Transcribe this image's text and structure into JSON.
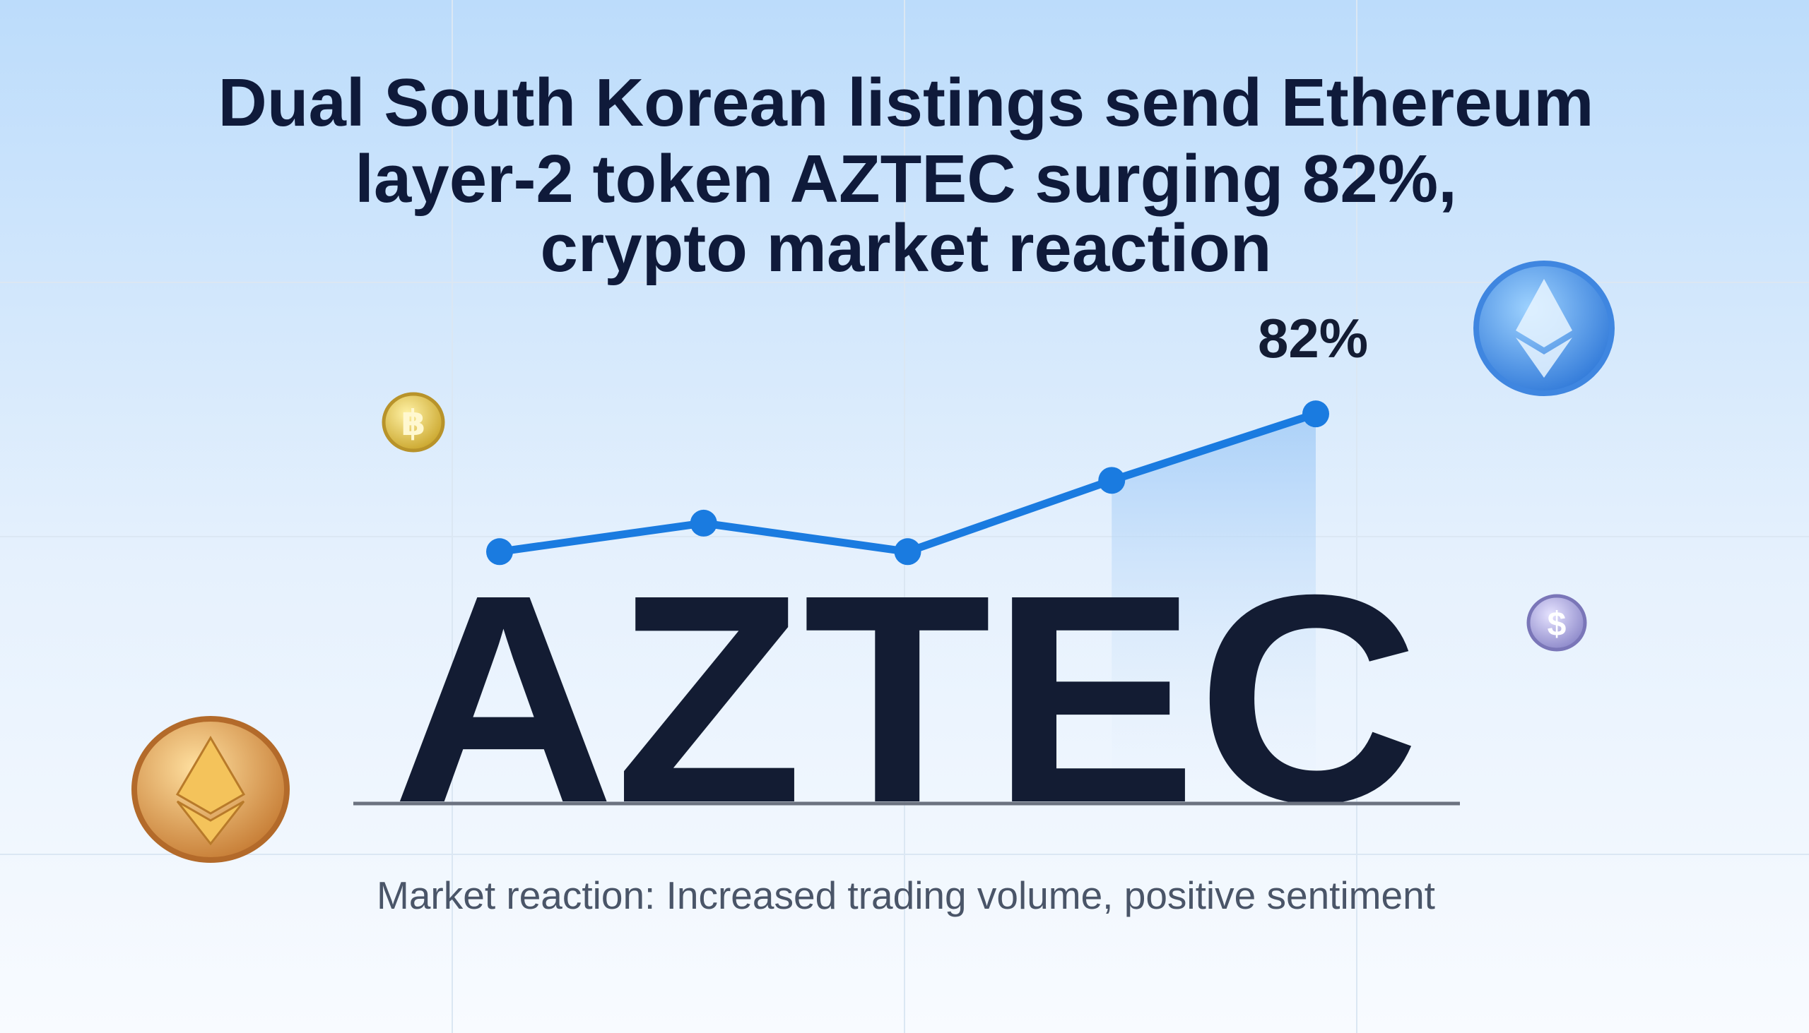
{
  "headline": [
    "Dual South Korean listings send Ethereum",
    "layer-2 token AZTEC surging 82%,",
    "crypto market reaction"
  ],
  "sparkline": {
    "label": "82%",
    "values": [
      53,
      59,
      53,
      68,
      82
    ]
  },
  "ticker": "AZTEC",
  "caption": "Market reaction: Increased trading volume, positive sentiment"
}
